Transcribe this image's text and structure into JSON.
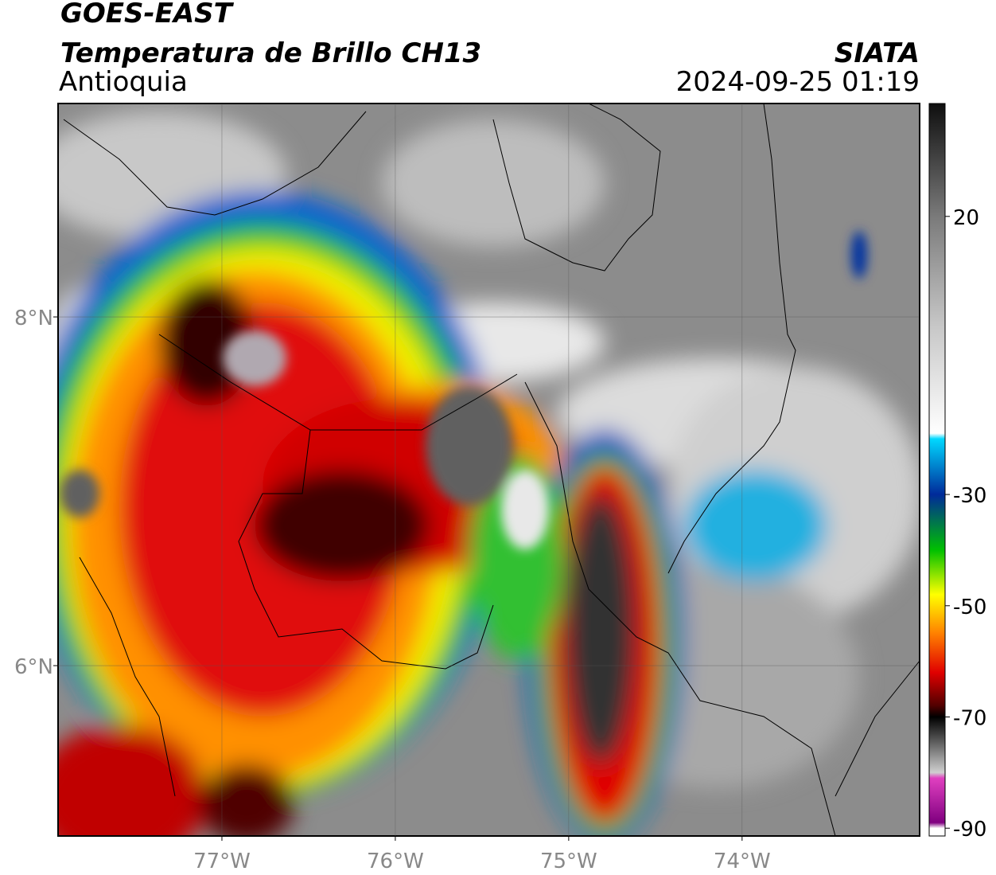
{
  "header": {
    "title": "GOES-EAST",
    "product": "Temperatura de Brillo CH13",
    "region": "Antioquia",
    "agency": "SIATA",
    "timestamp": "2024-09-25 01:19"
  },
  "map": {
    "xlim": [
      -77.945,
      -72.976
    ],
    "ylim": [
      5.023,
      9.224
    ],
    "xticks": [
      {
        "value": -77,
        "label": "77°W"
      },
      {
        "value": -76,
        "label": "76°W"
      },
      {
        "value": -75,
        "label": "75°W"
      },
      {
        "value": -74,
        "label": "74°W"
      }
    ],
    "yticks": [
      {
        "value": 8,
        "label": "8°N"
      },
      {
        "value": 6,
        "label": "6°N"
      }
    ],
    "grid": true
  },
  "colorbar": {
    "lim": [
      40.3,
      -91.4
    ],
    "ticks": [
      20,
      -30,
      -50,
      -70,
      -90
    ],
    "colormap": [
      {
        "value": 40,
        "color": "#101010"
      },
      {
        "value": 20,
        "color": "#7a7a7a"
      },
      {
        "value": 0,
        "color": "#c8c8c8"
      },
      {
        "value": -19,
        "color": "#ffffff"
      },
      {
        "value": -20,
        "color": "#00d8ff"
      },
      {
        "value": -30,
        "color": "#002a9a"
      },
      {
        "value": -40,
        "color": "#00c000"
      },
      {
        "value": -48,
        "color": "#ffff00"
      },
      {
        "value": -55,
        "color": "#ff8000"
      },
      {
        "value": -62,
        "color": "#e00000"
      },
      {
        "value": -68,
        "color": "#500000"
      },
      {
        "value": -70,
        "color": "#000000"
      },
      {
        "value": -80,
        "color": "#d0d0d0"
      },
      {
        "value": -81,
        "color": "#e040c0"
      },
      {
        "value": -89,
        "color": "#800080"
      },
      {
        "value": -90,
        "color": "#ffffff"
      }
    ]
  }
}
